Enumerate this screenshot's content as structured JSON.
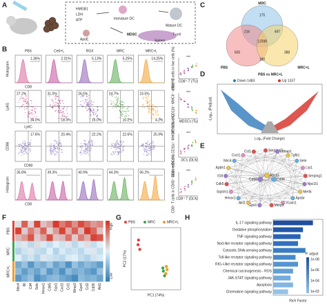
{
  "labels": {
    "a": "A",
    "b": "B",
    "c": "C",
    "d": "D",
    "e": "E",
    "f": "F",
    "g": "G",
    "h": "H"
  },
  "a": {
    "signals": [
      "HMGB1",
      "LDH",
      "ATP"
    ],
    "immature_dc": "Immature DC",
    "mature_dc": "Mature DC",
    "apoe": "ApoE",
    "mdsc": "MDSC",
    "t_cell": "T cell",
    "spleen": "Spleen"
  },
  "b": {
    "groups": [
      "PBS",
      "Ce6+L",
      "RGX",
      "MRC",
      "MRC+L"
    ],
    "rows": [
      {
        "ylabel": "Histogram",
        "xlabel": "CD8",
        "percents": [
          [
            "1.36%"
          ],
          [
            "2.01%"
          ],
          [
            "5.13%"
          ],
          [
            "5.25%"
          ],
          [
            "14.25%"
          ]
        ]
      },
      {
        "ylabel": "Ly6G",
        "xlabel": "Ly6C",
        "percents": [
          [
            "27.2%",
            "34.0%"
          ],
          [
            "31.0%",
            "18.3%"
          ],
          [
            "26.5%",
            "16.0%"
          ],
          [
            "24.7%",
            "10.2%"
          ],
          [
            "23.5%",
            "4.2%"
          ]
        ]
      },
      {
        "ylabel": "CD86",
        "xlabel": "CD80",
        "percents": [
          [
            "17.6%"
          ],
          [
            "20.4%"
          ],
          [
            "22.2%"
          ],
          [
            "22.6%"
          ],
          [
            "25.9%"
          ]
        ]
      },
      {
        "ylabel": "Histogram",
        "xlabel": "CD8",
        "percents": [
          [
            "35.8%"
          ],
          [
            "39.3%"
          ],
          [
            "40.9%"
          ],
          [
            "44.3%"
          ],
          [
            "56.2%"
          ]
        ]
      }
    ],
    "summaries": [
      {
        "ylabel": "CD8⁺ T cells in live cells (%)",
        "caption": "CD8⁺ T (TU)",
        "significance": "***"
      },
      {
        "ylabel": "MDSCs in CD11b⁺ MHCII⁻ cells (%)",
        "caption": "MDSCs (Tu)",
        "significance": "***"
      },
      {
        "ylabel": "Mature DCs in CD11c⁺ MHCII⁺ cells (%)",
        "caption": "DCs (DLN)",
        "significance": "***"
      },
      {
        "ylabel": "CD8⁺ T cells in CD45⁺ CD3⁺ cells (%)",
        "caption": "CD8⁺ T (DLN)",
        "significance": "***"
      }
    ]
  },
  "c": {
    "sets": [
      "MRC",
      "PBS",
      "MRC+L"
    ],
    "counts": [
      "175",
      "216",
      "497",
      "12598",
      "605",
      "180",
      "388"
    ]
  },
  "d": {
    "title": "PBS vs MRC+L",
    "legend": [
      "Down 1483",
      "Up 1337"
    ],
    "ylabel": "-Log₁₀ (Padjust)",
    "xlabel": "Log₂ (Fold Change)"
  },
  "e": {
    "genes": [
      "Serpina3i",
      "Ldlrap1",
      "Tgfb1",
      "Sele",
      "Lrp1",
      "Serping1",
      "Npc1l1",
      "Mertk",
      "Apobr",
      "Vcam1",
      "Mmp3",
      "Gpx1",
      "Akt1",
      "Hmox1",
      "Sqstm1",
      "Cdk5",
      "Il18",
      "Apbh1",
      "Nlrc4",
      "Cxcl1",
      "Ccl1",
      "Cd68",
      "Abca1",
      "Cd36"
    ]
  },
  "f": {
    "groups": [
      "PBS",
      "MRC",
      "MRC+L"
    ],
    "legend": [
      "High",
      "Low"
    ],
    "genes": [
      "Nlrc4",
      "Il6",
      "Cd4",
      "Sele",
      "Hmox1",
      "Cdk5",
      "Gpx1",
      "Cxcl1",
      "Ccl1",
      "Mmp3",
      "Gpx4",
      "Ccl2",
      "Cd36",
      "Akt1"
    ],
    "values": [
      [
        0.2,
        1.5,
        0.3,
        1.8,
        0.5,
        0.8,
        1.9,
        1.2,
        1.6,
        1.0,
        1.7,
        1.3,
        0.9,
        1.1
      ],
      [
        1.8,
        0.4,
        1.2,
        0.6,
        1.5,
        0.3,
        0.9,
        1.8,
        0.7,
        1.5,
        0.6,
        1.9,
        1.4,
        0.5
      ],
      [
        0.6,
        0.9,
        1.6,
        0.4,
        0.8,
        1.7,
        0.5,
        0.6,
        1.3,
        0.4,
        1.2,
        0.7,
        1.8,
        1.6
      ],
      [
        -0.2,
        0.1,
        -0.4,
        0.2,
        -0.1,
        -0.3,
        0.0,
        -0.2,
        0.1,
        -0.4,
        -0.1,
        0.2,
        -0.3,
        0.0
      ],
      [
        -0.5,
        -0.2,
        0.1,
        -0.3,
        -0.4,
        0.0,
        -0.5,
        -0.1,
        -0.3,
        -0.2,
        -0.4,
        -0.1,
        0.1,
        -0.3
      ],
      [
        0.0,
        -0.4,
        -0.2,
        -0.5,
        0.1,
        -0.2,
        -0.3,
        -0.4,
        -0.1,
        0.0,
        -0.3,
        -0.5,
        -0.2,
        -0.1
      ],
      [
        -1.2,
        -0.8,
        -1.5,
        -0.9,
        -1.1,
        -0.7,
        -1.3,
        -1.0,
        -1.6,
        -0.8,
        -1.2,
        -0.9,
        -1.1,
        -1.4
      ],
      [
        -0.9,
        -1.4,
        -1.0,
        -1.3,
        -0.8,
        -1.5,
        -1.1,
        -1.6,
        -0.9,
        -1.2,
        -1.0,
        -1.3,
        -1.5,
        -0.8
      ],
      [
        -1.5,
        -1.1,
        -0.8,
        -1.6,
        -1.3,
        -1.0,
        -0.9,
        -1.2,
        -1.4,
        -1.7,
        -0.9,
        -1.1,
        -1.0,
        -1.3
      ]
    ]
  },
  "chart_data": [
    {
      "type": "scatter",
      "xlabel": "PC1 (74%)",
      "ylabel": "PC2 (17%)",
      "xlim": [
        -10,
        10
      ],
      "ylim": [
        -10,
        10
      ],
      "series": [
        {
          "name": "PBS",
          "color": "#e3403a",
          "x": [
            -7,
            -6.5,
            -7.2
          ],
          "y": [
            6,
            3,
            4.5
          ]
        },
        {
          "name": "MRC",
          "color": "#3aa655",
          "x": [
            3,
            3.5,
            2.8
          ],
          "y": [
            -4,
            -5.5,
            -3
          ]
        },
        {
          "name": "MRC+L",
          "color": "#f39c23",
          "x": [
            4.2,
            4,
            4.5
          ],
          "y": [
            -2.5,
            -4.8,
            -3.5
          ]
        }
      ]
    },
    {
      "type": "barh",
      "xlabel": "Rich Factor",
      "xlim": [
        0,
        0.2
      ],
      "categories": [
        "IL-17 signaling pathway",
        "Oxidative phosphorylation",
        "TNF signaling pathway",
        "Nod-like receptor signaling pathway",
        "Cytosolic DNA-sensing pathway",
        "Toll-like receptor signaling pathway",
        "RIG-I-like receptor signaling pathway",
        "Chemical carcinogenesis - ROS",
        "JAK-STAT signaling pathway",
        "Apoptosis",
        "Chemokine signaling pathway"
      ],
      "values": [
        0.16,
        0.12,
        0.11,
        0.1,
        0.13,
        0.09,
        0.1,
        0.08,
        0.07,
        0.08,
        0.06
      ],
      "colors": [
        "#1f4e9c",
        "#2358a8",
        "#2a63b4",
        "#3170bd",
        "#3a7cc4",
        "#4788cb",
        "#5594d1",
        "#62a0d6",
        "#72abdc",
        "#82b6e1",
        "#94c2e6"
      ],
      "legend_title": "P. adjust",
      "legend_labels": [
        "1e-08",
        "1e-06",
        "1e-04",
        "1e-02"
      ]
    }
  ]
}
